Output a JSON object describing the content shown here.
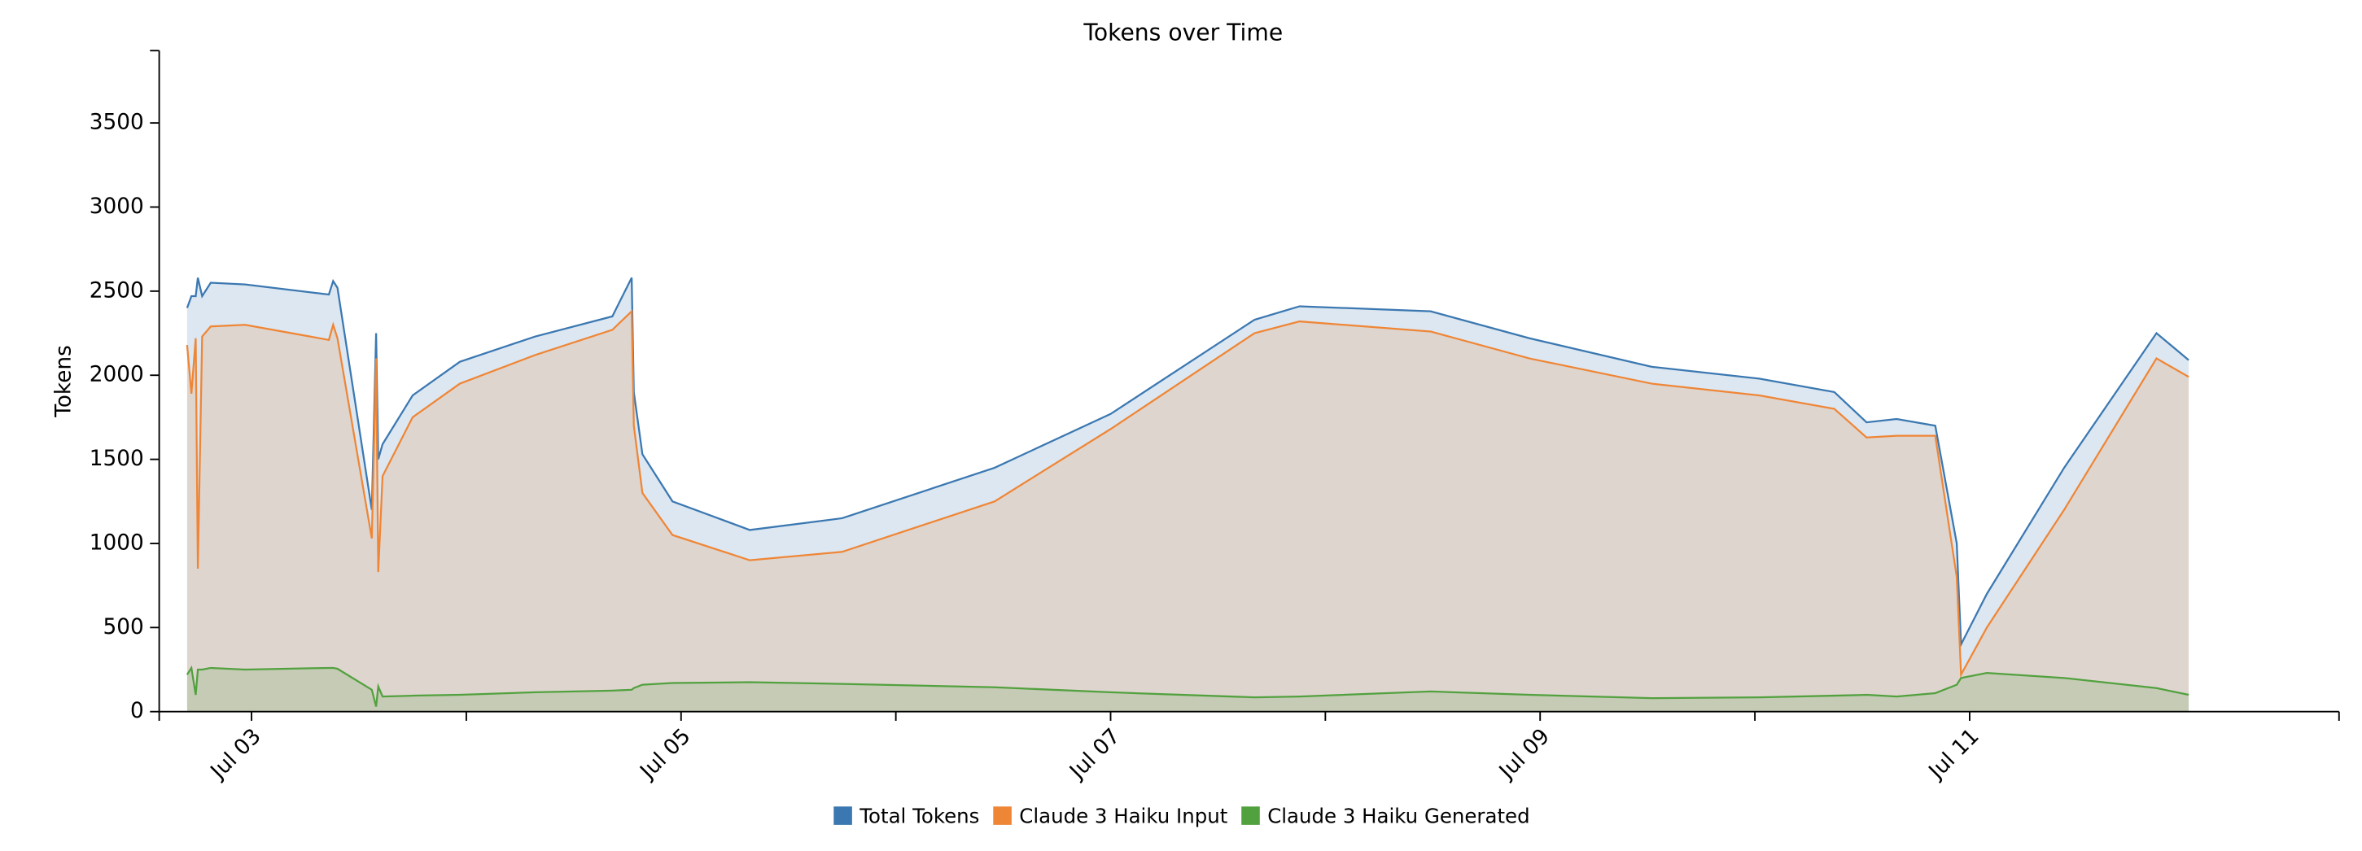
{
  "chart_data": {
    "type": "area",
    "title": "Tokens over Time",
    "y_label": "Tokens",
    "x": [
      2.7,
      2.72,
      2.74,
      2.75,
      2.77,
      2.81,
      2.97,
      3.36,
      3.38,
      3.4,
      3.56,
      3.58,
      3.59,
      3.61,
      3.75,
      3.97,
      4.32,
      4.68,
      4.77,
      4.78,
      4.82,
      4.96,
      5.32,
      5.75,
      6.46,
      7.0,
      7.67,
      7.88,
      8.49,
      8.95,
      9.52,
      10.02,
      10.37,
      10.52,
      10.66,
      10.84,
      10.94,
      10.96,
      11.08,
      11.44,
      11.87,
      12.02
    ],
    "series": [
      {
        "name": "Total Tokens",
        "color": "#3b78b1",
        "values": [
          2400,
          2470,
          2470,
          2580,
          2470,
          2550,
          2540,
          2480,
          2560,
          2520,
          1200,
          2250,
          1500,
          1590,
          1880,
          2080,
          2230,
          2350,
          2580,
          1900,
          1530,
          1250,
          1080,
          1150,
          1450,
          1770,
          2330,
          2410,
          2380,
          2220,
          2050,
          1980,
          1900,
          1720,
          1740,
          1700,
          1000,
          400,
          700,
          1450,
          2250,
          2090
        ]
      },
      {
        "name": "Claude 3 Haiku Input",
        "color": "#ef8636",
        "values": [
          2180,
          1890,
          2220,
          850,
          2230,
          2290,
          2300,
          2210,
          2300,
          2220,
          1030,
          2100,
          830,
          1400,
          1750,
          1950,
          2120,
          2270,
          2380,
          1700,
          1300,
          1050,
          900,
          950,
          1250,
          1680,
          2250,
          2320,
          2260,
          2100,
          1950,
          1880,
          1800,
          1630,
          1640,
          1640,
          800,
          220,
          500,
          1200,
          2100,
          1990
        ]
      },
      {
        "name": "Claude 3 Haiku Generated",
        "color": "#52a13f",
        "values": [
          220,
          260,
          100,
          250,
          250,
          260,
          250,
          260,
          260,
          255,
          130,
          30,
          150,
          90,
          95,
          100,
          115,
          125,
          130,
          140,
          160,
          170,
          175,
          165,
          145,
          115,
          85,
          90,
          120,
          100,
          80,
          85,
          95,
          100,
          90,
          110,
          160,
          200,
          230,
          200,
          140,
          100
        ]
      }
    ],
    "xlim": [
      2.57,
      12.72
    ],
    "xticks": [
      {
        "value": 3,
        "label": "Jul 03"
      },
      {
        "value": 4,
        "label": null
      },
      {
        "value": 5,
        "label": "Jul 05"
      },
      {
        "value": 6,
        "label": null
      },
      {
        "value": 7,
        "label": "Jul 07"
      },
      {
        "value": 8,
        "label": null
      },
      {
        "value": 9,
        "label": "Jul 09"
      },
      {
        "value": 10,
        "label": null
      },
      {
        "value": 11,
        "label": "Jul 11"
      }
    ],
    "ylim": [
      0,
      3930
    ],
    "yticks": [
      0,
      500,
      1000,
      1500,
      2000,
      2500,
      3000,
      3500
    ],
    "grid": false,
    "legend": "bottom"
  }
}
